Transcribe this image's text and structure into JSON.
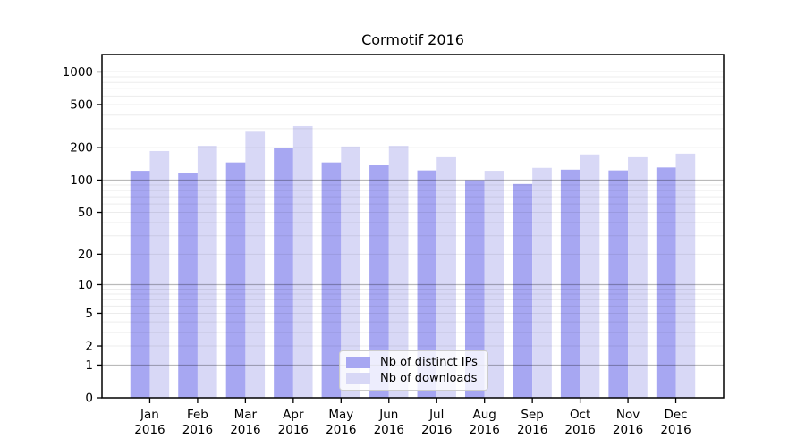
{
  "figure": {
    "background": "#ffffff",
    "text_color": "#000000"
  },
  "chart_data": {
    "type": "bar",
    "title": "Cormotif 2016",
    "year": "2016",
    "categories": [
      "Jan",
      "Feb",
      "Mar",
      "Apr",
      "May",
      "Jun",
      "Jul",
      "Aug",
      "Sep",
      "Oct",
      "Nov",
      "Dec"
    ],
    "series": [
      {
        "name": "Nb of distinct IPs",
        "color": "#a7a7f2",
        "values": [
          122,
          117,
          146,
          200,
          146,
          137,
          123,
          100,
          92,
          125,
          123,
          131
        ]
      },
      {
        "name": "Nb of downloads",
        "color": "#d8d8f6",
        "values": [
          186,
          208,
          281,
          317,
          205,
          208,
          163,
          122,
          130,
          173,
          163,
          176
        ]
      }
    ],
    "xlabel": "",
    "ylabel": "",
    "y_scale": "log10(value+1)",
    "ylim": [
      0,
      1450
    ],
    "y_ticks": [
      1000,
      500,
      200,
      100,
      50,
      20,
      10,
      5,
      2,
      1,
      0
    ],
    "grid": {
      "major_lines": [
        1,
        10,
        100,
        1000
      ],
      "minor_lines": [
        2,
        3,
        4,
        5,
        6,
        7,
        8,
        9,
        20,
        30,
        40,
        50,
        60,
        70,
        80,
        90,
        200,
        300,
        400,
        500,
        600,
        700,
        800,
        900
      ],
      "major_color": "rgba(0,0,0,0.27)",
      "minor_color": "rgba(0,0,0,0.075)"
    },
    "legend_position": "lower center"
  }
}
